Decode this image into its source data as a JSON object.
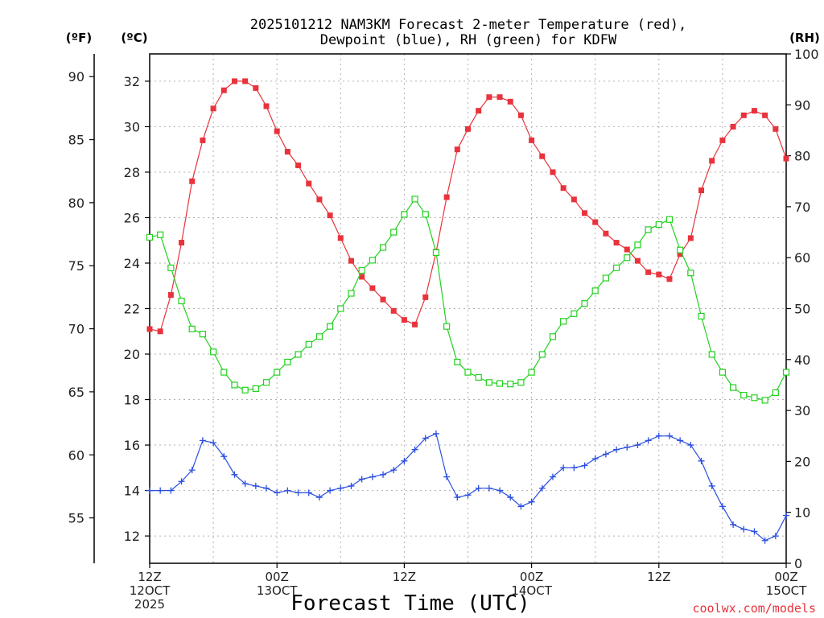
{
  "chart_data": {
    "type": "line",
    "title_line1": "2025101212 NAM3KM Forecast 2-meter Temperature (red),",
    "title_line2": "Dewpoint (blue), RH (green) for KDFW",
    "xlabel": "Forecast Time (UTC)",
    "credit": "coolwx.com/models",
    "unit_f": "(ºF)",
    "unit_c": "(ºC)",
    "unit_rh": "(RH)",
    "x_range_hours": [
      0,
      60
    ],
    "c_range": [
      10.8,
      33.2
    ],
    "f_range": [
      51.4,
      91.8
    ],
    "rh_range": [
      0,
      100
    ],
    "c_ticks": [
      12,
      14,
      16,
      18,
      20,
      22,
      24,
      26,
      28,
      30,
      32
    ],
    "f_ticks": [
      55,
      60,
      65,
      70,
      75,
      80,
      85,
      90
    ],
    "rh_ticks": [
      0,
      10,
      20,
      30,
      40,
      50,
      60,
      70,
      80,
      90,
      100
    ],
    "x_ticks": [
      {
        "hour": 0,
        "l1": "12Z",
        "l2": "12OCT",
        "l3": "2025"
      },
      {
        "hour": 12,
        "l1": "00Z",
        "l2": "13OCT",
        "l3": ""
      },
      {
        "hour": 24,
        "l1": "12Z",
        "l2": "",
        "l3": ""
      },
      {
        "hour": 36,
        "l1": "00Z",
        "l2": "14OCT",
        "l3": ""
      },
      {
        "hour": 48,
        "l1": "12Z",
        "l2": "",
        "l3": ""
      },
      {
        "hour": 60,
        "l1": "00Z",
        "l2": "15OCT",
        "l3": ""
      }
    ],
    "series": [
      {
        "name": "Temperature",
        "unit": "C",
        "color": "#e8333c",
        "marker": "filled-square",
        "x": [
          0,
          1,
          2,
          3,
          4,
          5,
          6,
          7,
          8,
          9,
          10,
          11,
          12,
          13,
          14,
          15,
          16,
          17,
          18,
          19,
          20,
          21,
          22,
          23,
          24,
          25,
          26,
          27,
          28,
          29,
          30,
          31,
          32,
          33,
          34,
          35,
          36,
          37,
          38,
          39,
          40,
          41,
          42,
          43,
          44,
          45,
          46,
          47,
          48,
          49,
          50,
          51,
          52,
          53,
          54,
          55,
          56,
          57,
          58,
          59,
          60
        ],
        "values": [
          21.1,
          21.0,
          22.6,
          24.9,
          27.6,
          29.4,
          30.8,
          31.6,
          32.0,
          32.0,
          31.7,
          30.9,
          29.8,
          28.9,
          28.3,
          27.5,
          26.8,
          26.1,
          25.1,
          24.1,
          23.4,
          22.9,
          22.4,
          21.9,
          21.5,
          21.3,
          22.5,
          24.5,
          26.9,
          29.0,
          29.9,
          30.7,
          31.3,
          31.3,
          31.1,
          30.5,
          29.4,
          28.7,
          28.0,
          27.3,
          26.8,
          26.2,
          25.8,
          25.3,
          24.9,
          24.6,
          24.1,
          23.6,
          23.5,
          23.3,
          24.4,
          25.1,
          27.2,
          28.5,
          29.4,
          30.0,
          30.5,
          30.7,
          30.5,
          29.9,
          28.6
        ]
      },
      {
        "name": "Dewpoint",
        "unit": "C",
        "color": "#2b4fe0",
        "marker": "plus",
        "x": [
          0,
          1,
          2,
          3,
          4,
          5,
          6,
          7,
          8,
          9,
          10,
          11,
          12,
          13,
          14,
          15,
          16,
          17,
          18,
          19,
          20,
          21,
          22,
          23,
          24,
          25,
          26,
          27,
          28,
          29,
          30,
          31,
          32,
          33,
          34,
          35,
          36,
          37,
          38,
          39,
          40,
          41,
          42,
          43,
          44,
          45,
          46,
          47,
          48,
          49,
          50,
          51,
          52,
          53,
          54,
          55,
          56,
          57,
          58,
          59,
          60
        ],
        "values": [
          14.0,
          14.0,
          14.0,
          14.4,
          14.9,
          16.2,
          16.1,
          15.5,
          14.7,
          14.3,
          14.2,
          14.1,
          13.9,
          14.0,
          13.9,
          13.9,
          13.7,
          14.0,
          14.1,
          14.2,
          14.5,
          14.6,
          14.7,
          14.9,
          15.3,
          15.8,
          16.3,
          16.5,
          14.6,
          13.7,
          13.8,
          14.1,
          14.1,
          14.0,
          13.7,
          13.3,
          13.5,
          14.1,
          14.6,
          15.0,
          15.0,
          15.1,
          15.4,
          15.6,
          15.8,
          15.9,
          16.0,
          16.2,
          16.4,
          16.4,
          16.2,
          16.0,
          15.3,
          14.2,
          13.3,
          12.5,
          12.3,
          12.2,
          11.8,
          12.0,
          12.9
        ]
      },
      {
        "name": "RH",
        "unit": "%",
        "color": "#22d11f",
        "marker": "open-square",
        "x": [
          0,
          1,
          2,
          3,
          4,
          5,
          6,
          7,
          8,
          9,
          10,
          11,
          12,
          13,
          14,
          15,
          16,
          17,
          18,
          19,
          20,
          21,
          22,
          23,
          24,
          25,
          26,
          27,
          28,
          29,
          30,
          31,
          32,
          33,
          34,
          35,
          36,
          37,
          38,
          39,
          40,
          41,
          42,
          43,
          44,
          45,
          46,
          47,
          48,
          49,
          50,
          51,
          52,
          53,
          54,
          55,
          56,
          57,
          58,
          59,
          60
        ],
        "values": [
          64,
          64.5,
          58,
          51.5,
          46,
          45,
          41.5,
          37.5,
          35,
          34,
          34.3,
          35.5,
          37.5,
          39.5,
          41,
          43,
          44.5,
          46.5,
          50,
          53,
          57.5,
          59.5,
          62,
          65,
          68.5,
          71.5,
          68.5,
          61,
          46.5,
          39.5,
          37.5,
          36.5,
          35.5,
          35.3,
          35.2,
          35.5,
          37.5,
          41,
          44.5,
          47.5,
          49,
          51,
          53.5,
          56,
          58,
          60,
          62.5,
          65.5,
          66.5,
          67.5,
          61.5,
          57,
          48.5,
          41,
          37.5,
          34.5,
          33,
          32.5,
          32,
          33.5,
          37.5
        ]
      }
    ]
  }
}
